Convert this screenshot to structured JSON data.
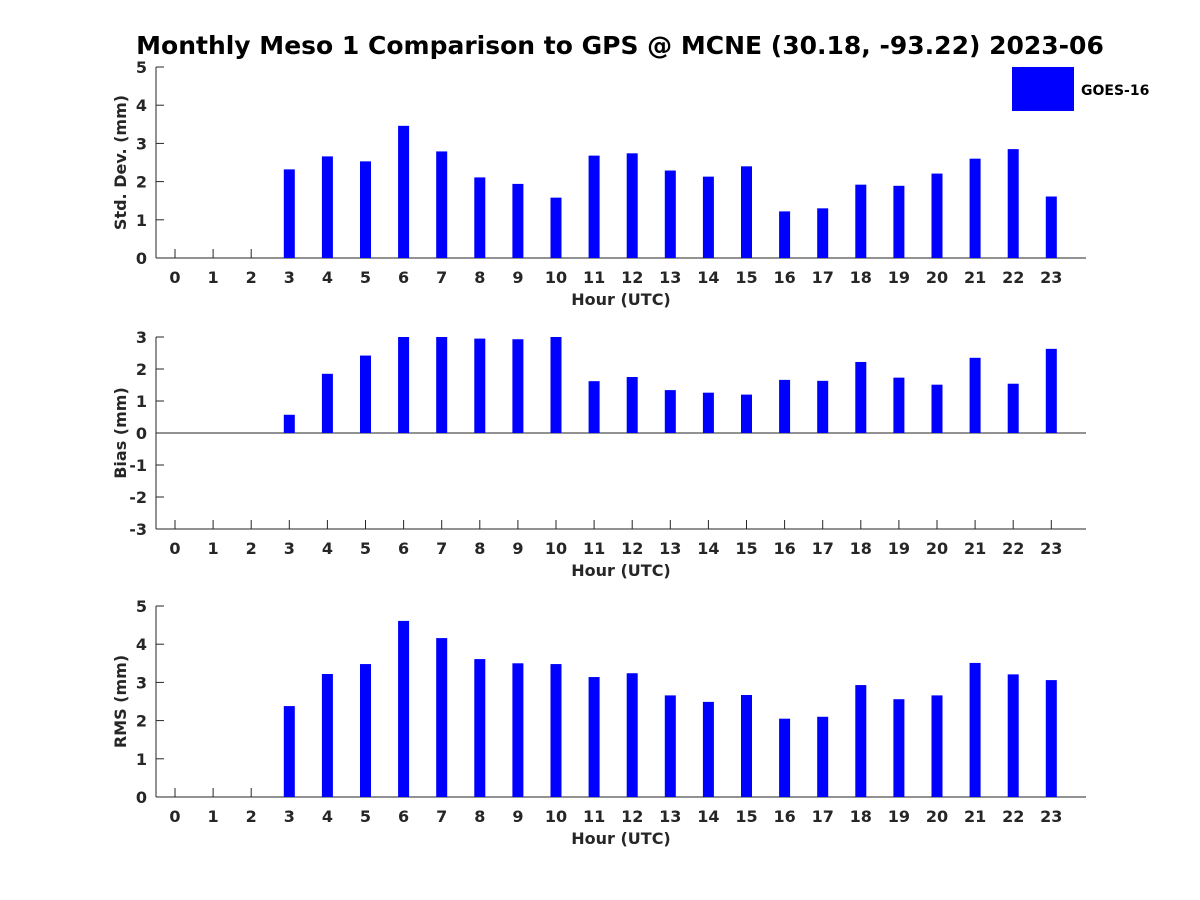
{
  "colors": {
    "bar": "#0000ff",
    "axis": "#262626",
    "background": "#ffffff"
  },
  "chart_data": {
    "type": "bar",
    "title": "Monthly Meso 1 Comparison to GPS @ MCNE (30.18, -93.22) 2023-06",
    "legend": {
      "entries": [
        "GOES-16"
      ],
      "placement": "top-right"
    },
    "categories": [
      "0",
      "1",
      "2",
      "3",
      "4",
      "5",
      "6",
      "7",
      "8",
      "9",
      "10",
      "11",
      "12",
      "13",
      "14",
      "15",
      "16",
      "17",
      "18",
      "19",
      "20",
      "21",
      "22",
      "23"
    ],
    "panels": [
      {
        "ylabel": "Std. Dev. (mm)",
        "xlabel": "Hour (UTC)",
        "ylim": [
          0,
          5
        ],
        "yticks": [
          "0",
          "1",
          "2",
          "3",
          "4",
          "5"
        ],
        "series": [
          {
            "name": "GOES-16",
            "values": [
              null,
              null,
              null,
              2.32,
              2.66,
              2.53,
              3.46,
              2.79,
              2.11,
              1.94,
              1.58,
              2.68,
              2.74,
              2.29,
              2.13,
              2.4,
              1.22,
              1.3,
              1.92,
              1.89,
              2.21,
              2.6,
              2.85,
              1.61
            ]
          }
        ]
      },
      {
        "ylabel": "Bias (mm)",
        "xlabel": "Hour (UTC)",
        "ylim": [
          -3,
          3
        ],
        "yticks": [
          "-3",
          "-2",
          "-1",
          "0",
          "1",
          "2",
          "3"
        ],
        "series": [
          {
            "name": "GOES-16",
            "values": [
              null,
              null,
              null,
              0.57,
              1.85,
              2.42,
              3.0,
              3.0,
              2.95,
              2.93,
              3.0,
              1.62,
              1.75,
              1.34,
              1.26,
              1.2,
              1.66,
              1.63,
              2.22,
              1.73,
              1.51,
              2.35,
              1.54,
              2.63
            ]
          }
        ]
      },
      {
        "ylabel": "RMS (mm)",
        "xlabel": "Hour (UTC)",
        "ylim": [
          0,
          5
        ],
        "yticks": [
          "0",
          "1",
          "2",
          "3",
          "4",
          "5"
        ],
        "series": [
          {
            "name": "GOES-16",
            "values": [
              null,
              null,
              null,
              2.38,
              3.22,
              3.48,
              4.61,
              4.16,
              3.61,
              3.5,
              3.48,
              3.14,
              3.24,
              2.66,
              2.49,
              2.67,
              2.05,
              2.1,
              2.93,
              2.56,
              2.66,
              3.51,
              3.21,
              3.06
            ]
          }
        ]
      }
    ]
  }
}
